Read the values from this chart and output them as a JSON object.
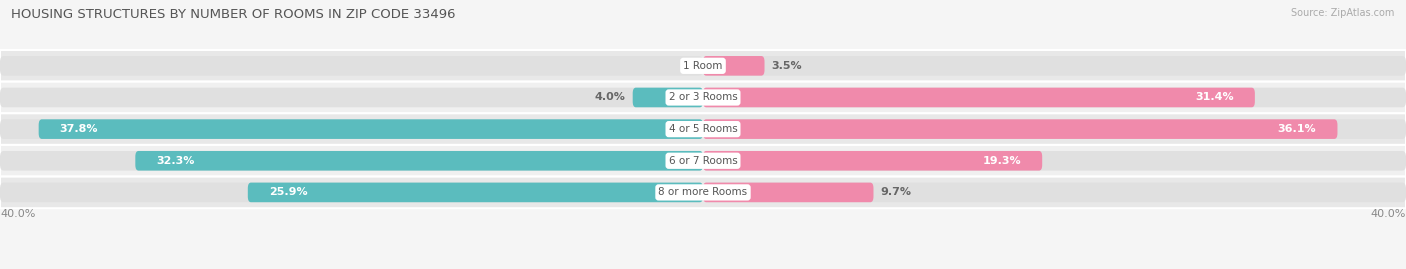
{
  "title": "HOUSING STRUCTURES BY NUMBER OF ROOMS IN ZIP CODE 33496",
  "source": "Source: ZipAtlas.com",
  "categories": [
    "1 Room",
    "2 or 3 Rooms",
    "4 or 5 Rooms",
    "6 or 7 Rooms",
    "8 or more Rooms"
  ],
  "owner_values": [
    0.0,
    4.0,
    37.8,
    32.3,
    25.9
  ],
  "renter_values": [
    3.5,
    31.4,
    36.1,
    19.3,
    9.7
  ],
  "owner_color": "#5bbcbe",
  "renter_color": "#f08aab",
  "axis_max": 40.0,
  "axis_label_left": "40.0%",
  "axis_label_right": "40.0%",
  "bg_color": "#f5f5f5",
  "row_bg_even": "#e8e8e8",
  "row_bg_odd": "#f0f0f0",
  "bar_bg_color": "#e0e0e0",
  "bar_height": 0.62,
  "title_fontsize": 9.5,
  "label_fontsize": 8,
  "cat_fontsize": 7.5,
  "legend_fontsize": 8,
  "source_fontsize": 7,
  "value_label_inside_threshold": 5.0
}
